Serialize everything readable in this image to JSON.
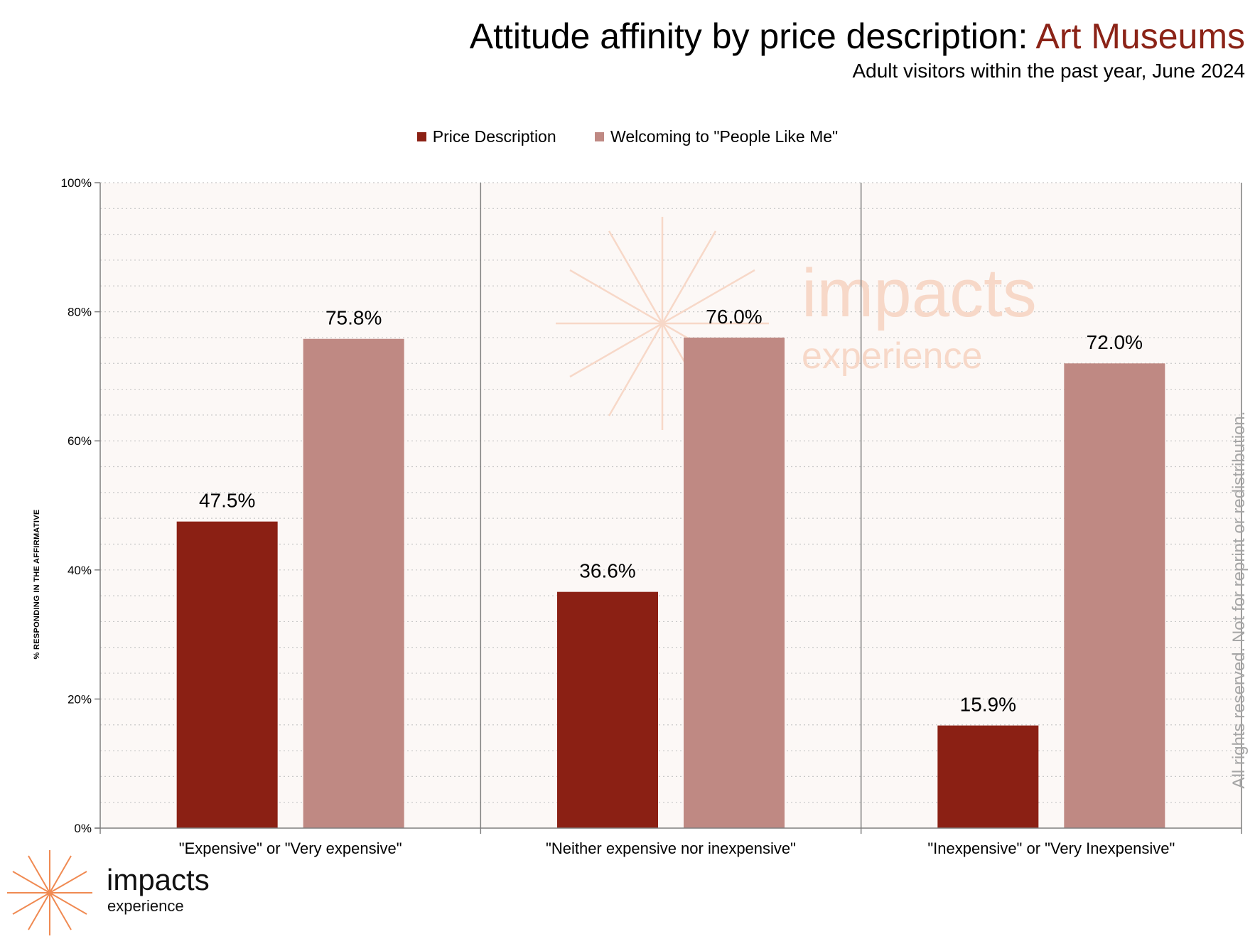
{
  "header": {
    "title_prefix": "Attitude affinity by price description: ",
    "title_highlight": "Art Museums",
    "subtitle": "Adult visitors within the past year, June 2024"
  },
  "watermark": {
    "main": "impacts",
    "sub": "experience"
  },
  "rights_note": "All rights reserved. Not for reprint or redistribution.",
  "logo": {
    "main": "impacts",
    "sub": "experience",
    "icon": "starburst-icon"
  },
  "colors": {
    "title_highlight": "#8b2317",
    "series_1": "#8b2014",
    "series_2": "#bf8983",
    "plot_background": "#fcf8f6",
    "watermark": "#f7d8c8",
    "logo_icon": "#f08a52"
  },
  "chart_data": {
    "type": "bar",
    "title": "Attitude affinity by price description: Art Museums",
    "subtitle": "Adult visitors within the past year, June 2024",
    "categories": [
      "\"Expensive\" or \"Very expensive\"",
      "\"Neither expensive nor inexpensive\"",
      "\"Inexpensive\" or \"Very Inexpensive\""
    ],
    "series": [
      {
        "name": "Price Description",
        "values": [
          47.5,
          36.6,
          15.9
        ],
        "labels": [
          "47.5%",
          "36.6%",
          "15.9%"
        ]
      },
      {
        "name": "Welcoming to \"People Like Me\"",
        "values": [
          75.8,
          76.0,
          72.0
        ],
        "labels": [
          "75.8%",
          "76.0%",
          "72.0%"
        ]
      }
    ],
    "ylabel": "% RESPONDING IN THE AFFIRMATIVE",
    "ylim": [
      0,
      100
    ],
    "yticks": [
      0,
      20,
      40,
      60,
      80,
      100
    ],
    "ytick_labels": [
      "0%",
      "20%",
      "40%",
      "60%",
      "80%",
      "100%"
    ],
    "grid": true,
    "legend": "top-center"
  }
}
